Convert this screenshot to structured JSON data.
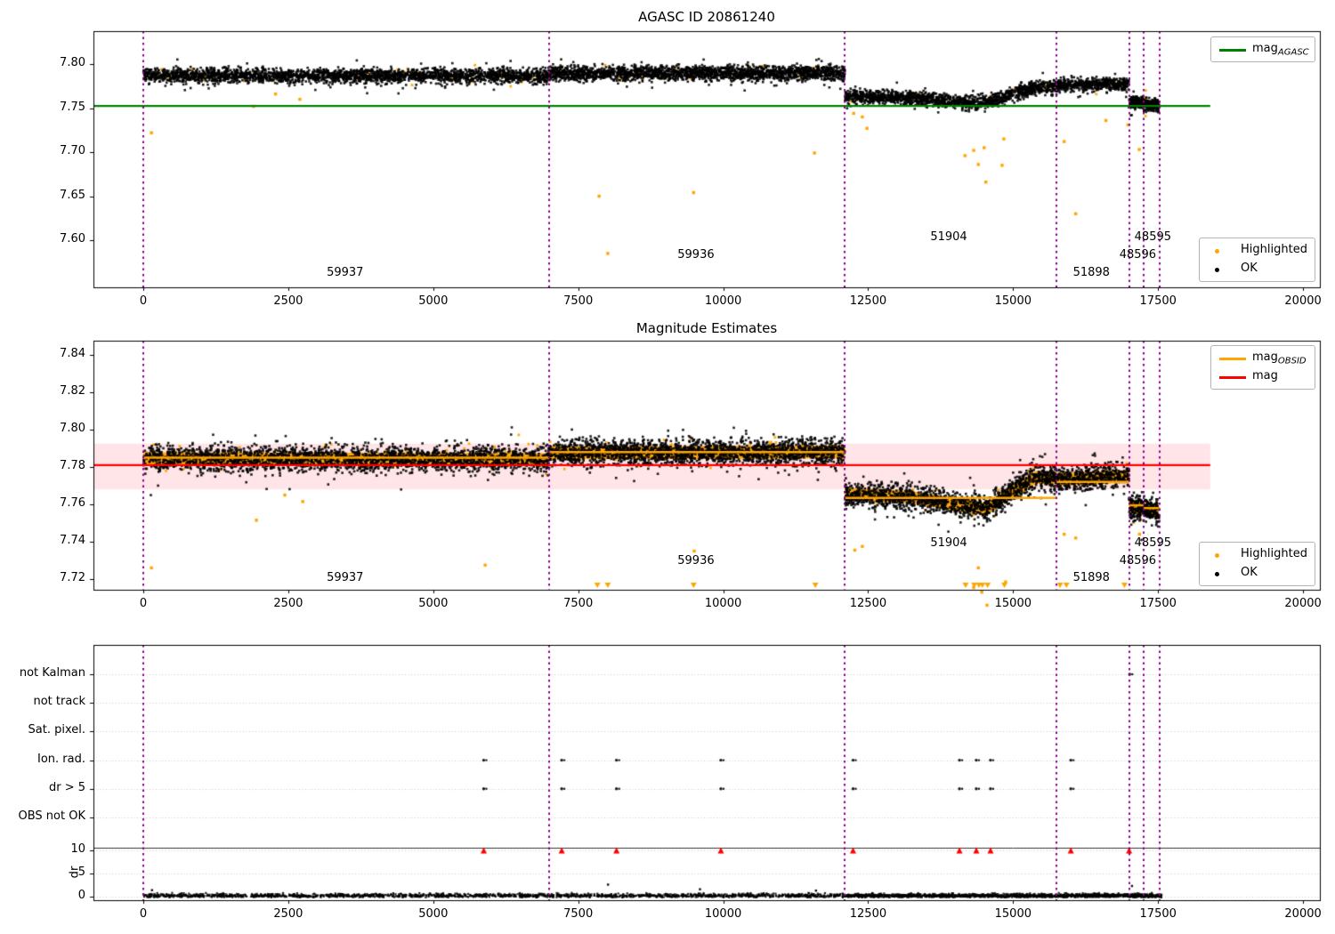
{
  "palette": {
    "highlight": "#FFA500",
    "ok": "#000000",
    "agasc_line": "#008000",
    "mag_line": "#FF0000",
    "obsid_line": "#FFA500",
    "boundary_line": "#8B008B",
    "band_fill": "rgba(255,105,130,0.18)",
    "clip_marker": "#FF0000",
    "grid_dotted": "#c8c8c8"
  },
  "axes": {
    "xlim": [
      -860,
      20290
    ],
    "xtick_values": [
      0,
      2500,
      5000,
      7500,
      10000,
      12500,
      15000,
      17500,
      20000
    ],
    "xtick_labels": [
      "0",
      "2500",
      "5000",
      "7500",
      "10000",
      "12500",
      "15000",
      "17500",
      "20000"
    ]
  },
  "obsid_boundaries": [
    0,
    7000,
    12100,
    15750,
    17000,
    17250,
    17520
  ],
  "obsid_labels": [
    {
      "text": "59937",
      "x": 3480,
      "row": 0
    },
    {
      "text": "59936",
      "x": 9530,
      "row": 1
    },
    {
      "text": "51904",
      "x": 13890,
      "row": 2
    },
    {
      "text": "51898",
      "x": 16350,
      "row": 0
    },
    {
      "text": "48596",
      "x": 17150,
      "row": 1
    },
    {
      "text": "48595",
      "x": 17410,
      "row": 2
    }
  ],
  "chart_data": [
    {
      "type": "scatter",
      "title": "AGASC ID 20861240",
      "ylim": [
        7.5465,
        7.8374
      ],
      "ytick_values": [
        7.6,
        7.65,
        7.7,
        7.75,
        7.8
      ],
      "ytick_labels": [
        "7.60",
        "7.65",
        "7.70",
        "7.75",
        "7.80"
      ],
      "agasc_mag": 7.7525,
      "line_extent": [
        -860,
        18400
      ],
      "segments": [
        {
          "obsid": "59937",
          "x0": 0,
          "x1": 7000,
          "n": 2600,
          "spread": 0.008,
          "orange_frac": 0.035,
          "trend": [
            [
              0,
              7.787
            ],
            [
              7000,
              7.7865
            ]
          ]
        },
        {
          "obsid": "59936",
          "x0": 7000,
          "x1": 12100,
          "n": 2200,
          "spread": 0.008,
          "orange_frac": 0.035,
          "trend": [
            [
              7000,
              7.789
            ],
            [
              12100,
              7.79
            ]
          ]
        },
        {
          "obsid": "51904",
          "x0": 12100,
          "x1": 15750,
          "n": 1500,
          "spread": 0.0075,
          "orange_frac": 0.03,
          "trend": [
            [
              12100,
              7.7635
            ],
            [
              13200,
              7.762
            ],
            [
              14000,
              7.758
            ],
            [
              14550,
              7.7555
            ],
            [
              15000,
              7.766
            ],
            [
              15400,
              7.7735
            ],
            [
              15750,
              7.774
            ]
          ]
        },
        {
          "obsid": "51898",
          "x0": 15750,
          "x1": 17000,
          "n": 520,
          "spread": 0.0075,
          "orange_frac": 0.03,
          "trend": [
            [
              15750,
              7.7755
            ],
            [
              17000,
              7.7775
            ]
          ]
        },
        {
          "obsid": "48596",
          "x0": 17000,
          "x1": 17250,
          "n": 160,
          "spread": 0.007,
          "orange_frac": 0.03,
          "trend": [
            [
              17000,
              7.757
            ],
            [
              17250,
              7.7555
            ]
          ]
        },
        {
          "obsid": "48595",
          "x0": 17250,
          "x1": 17520,
          "n": 160,
          "spread": 0.007,
          "orange_frac": 0.03,
          "trend": [
            [
              17250,
              7.7545
            ],
            [
              17520,
              7.753
            ]
          ]
        }
      ],
      "outliers_highlighted": [
        [
          140,
          7.722
        ],
        [
          1900,
          7.752
        ],
        [
          2280,
          7.766
        ],
        [
          2700,
          7.76
        ],
        [
          7860,
          7.65
        ],
        [
          8010,
          7.585
        ],
        [
          9490,
          7.654
        ],
        [
          11575,
          7.699
        ],
        [
          12250,
          7.744
        ],
        [
          12400,
          7.74
        ],
        [
          12480,
          7.727
        ],
        [
          14170,
          7.696
        ],
        [
          14320,
          7.702
        ],
        [
          14400,
          7.686
        ],
        [
          14500,
          7.705
        ],
        [
          14530,
          7.666
        ],
        [
          14810,
          7.685
        ],
        [
          14840,
          7.715
        ],
        [
          15880,
          7.712
        ],
        [
          16080,
          7.63
        ],
        [
          16600,
          7.736
        ],
        [
          16980,
          7.731
        ],
        [
          17175,
          7.703
        ]
      ],
      "legends": [
        {
          "pos": "top-right",
          "items": [
            {
              "marker": "line",
              "color": "#008000",
              "label": "mag",
              "sub": "AGASC"
            }
          ]
        },
        {
          "pos": "bottom-right",
          "items": [
            {
              "marker": "dot",
              "color": "#FFA500",
              "label": "Highlighted"
            },
            {
              "marker": "dot",
              "color": "#000000",
              "label": "OK"
            }
          ]
        }
      ]
    },
    {
      "type": "scatter",
      "title": "Magnitude Estimates",
      "ylim": [
        7.7143,
        7.8476
      ],
      "ytick_values": [
        7.72,
        7.74,
        7.76,
        7.78,
        7.8,
        7.82,
        7.84
      ],
      "ytick_labels": [
        "7.72",
        "7.74",
        "7.76",
        "7.78",
        "7.80",
        "7.82",
        "7.84"
      ],
      "mag": 7.781,
      "mag_band": [
        7.768,
        7.7925
      ],
      "line_extent": [
        -860,
        18400
      ],
      "obsid_mag_lines": [
        {
          "obsid": "59937",
          "x0": 0,
          "x1": 7000,
          "y": 7.785
        },
        {
          "obsid": "59936",
          "x0": 7000,
          "x1": 12100,
          "y": 7.788
        },
        {
          "obsid": "51904",
          "x0": 12100,
          "x1": 15750,
          "y": 7.7635
        },
        {
          "obsid": "51898",
          "x0": 15750,
          "x1": 17000,
          "y": 7.772
        },
        {
          "obsid": "48596",
          "x0": 17000,
          "x1": 17250,
          "y": 7.7595
        },
        {
          "obsid": "48595",
          "x0": 17250,
          "x1": 17520,
          "y": 7.758
        }
      ],
      "segments": [
        {
          "obsid": "59937",
          "x0": 0,
          "x1": 7000,
          "n": 2600,
          "spread": 0.0068,
          "orange_frac": 0.04,
          "trend": [
            [
              0,
              7.7845
            ],
            [
              7000,
              7.784
            ]
          ]
        },
        {
          "obsid": "59936",
          "x0": 7000,
          "x1": 12100,
          "n": 2200,
          "spread": 0.0068,
          "orange_frac": 0.04,
          "trend": [
            [
              7000,
              7.7875
            ],
            [
              12100,
              7.788
            ]
          ]
        },
        {
          "obsid": "51904",
          "x0": 12100,
          "x1": 15750,
          "n": 1500,
          "spread": 0.0066,
          "orange_frac": 0.035,
          "trend": [
            [
              12100,
              7.7655
            ],
            [
              13200,
              7.764
            ],
            [
              14000,
              7.76
            ],
            [
              14550,
              7.7575
            ],
            [
              15000,
              7.7675
            ],
            [
              15400,
              7.7745
            ],
            [
              15750,
              7.774
            ]
          ]
        },
        {
          "obsid": "51898",
          "x0": 15750,
          "x1": 17000,
          "n": 520,
          "spread": 0.0066,
          "orange_frac": 0.035,
          "trend": [
            [
              15750,
              7.7735
            ],
            [
              17000,
              7.775
            ]
          ]
        },
        {
          "obsid": "48596",
          "x0": 17000,
          "x1": 17250,
          "n": 160,
          "spread": 0.0062,
          "orange_frac": 0.035,
          "trend": [
            [
              17000,
              7.7595
            ],
            [
              17250,
              7.758
            ]
          ]
        },
        {
          "obsid": "48595",
          "x0": 17250,
          "x1": 17520,
          "n": 160,
          "spread": 0.0062,
          "orange_frac": 0.035,
          "trend": [
            [
              17250,
              7.7575
            ],
            [
              17520,
              7.756
            ]
          ]
        }
      ],
      "outliers_highlighted": [
        [
          140,
          7.726
        ],
        [
          1950,
          7.7515
        ],
        [
          2440,
          7.765
        ],
        [
          2750,
          7.7615
        ],
        [
          5895,
          7.7275
        ],
        [
          9500,
          7.735
        ],
        [
          12270,
          7.7355
        ],
        [
          12400,
          7.7375
        ],
        [
          14320,
          7.7155
        ],
        [
          14400,
          7.726
        ],
        [
          14460,
          7.713
        ],
        [
          14550,
          7.706
        ],
        [
          14870,
          7.7185
        ],
        [
          15880,
          7.744
        ],
        [
          16080,
          7.742
        ],
        [
          17180,
          7.744
        ]
      ],
      "clipped_below_x": [
        7830,
        8010,
        9490,
        11590,
        14180,
        14330,
        14410,
        14470,
        14560,
        14850,
        15810,
        15920,
        16920
      ],
      "legends": [
        {
          "pos": "top-right",
          "items": [
            {
              "marker": "line",
              "color": "#FFA500",
              "label": "mag",
              "sub": "OBSID"
            },
            {
              "marker": "line",
              "color": "#FF0000",
              "label": "mag"
            }
          ]
        },
        {
          "pos": "bottom-right",
          "items": [
            {
              "marker": "dot",
              "color": "#FFA500",
              "label": "Highlighted"
            },
            {
              "marker": "dot",
              "color": "#000000",
              "label": "OK"
            }
          ]
        }
      ]
    },
    {
      "type": "flags",
      "categories": [
        "not Kalman",
        "not track",
        "Sat. pixel.",
        "Ion. rad.",
        "dr > 5",
        "OBS not OK"
      ],
      "flag_points": {
        "Ion. rad.": [
          5870,
          7215,
          8160,
          9960,
          12240,
          14075,
          14365,
          14610,
          15995
        ],
        "dr > 5": [
          5870,
          7215,
          8160,
          9960,
          12240,
          14075,
          14365,
          14610,
          15995
        ],
        "not Kalman": [
          17010
        ]
      },
      "dr": {
        "ylabel": "dr",
        "tick_values": [
          0,
          5,
          10
        ],
        "tick_labels": [
          "0",
          "5",
          "10"
        ],
        "separator_value": 10.5,
        "clipped_x": [
          5870,
          7215,
          8160,
          9960,
          12240,
          14075,
          14365,
          14610,
          15995,
          17000
        ],
        "scatter": [
          {
            "x0": 0,
            "x1": 17560,
            "n": 2400,
            "max": 1.1
          },
          {
            "x0": 12100,
            "x1": 17560,
            "n": 700,
            "max": 1.2
          }
        ],
        "spikes": [
          [
            150,
            1.4
          ],
          [
            8014,
            2.6
          ],
          [
            9600,
            1.6
          ],
          [
            11600,
            1.3
          ],
          [
            17050,
            2.3
          ]
        ]
      }
    }
  ]
}
